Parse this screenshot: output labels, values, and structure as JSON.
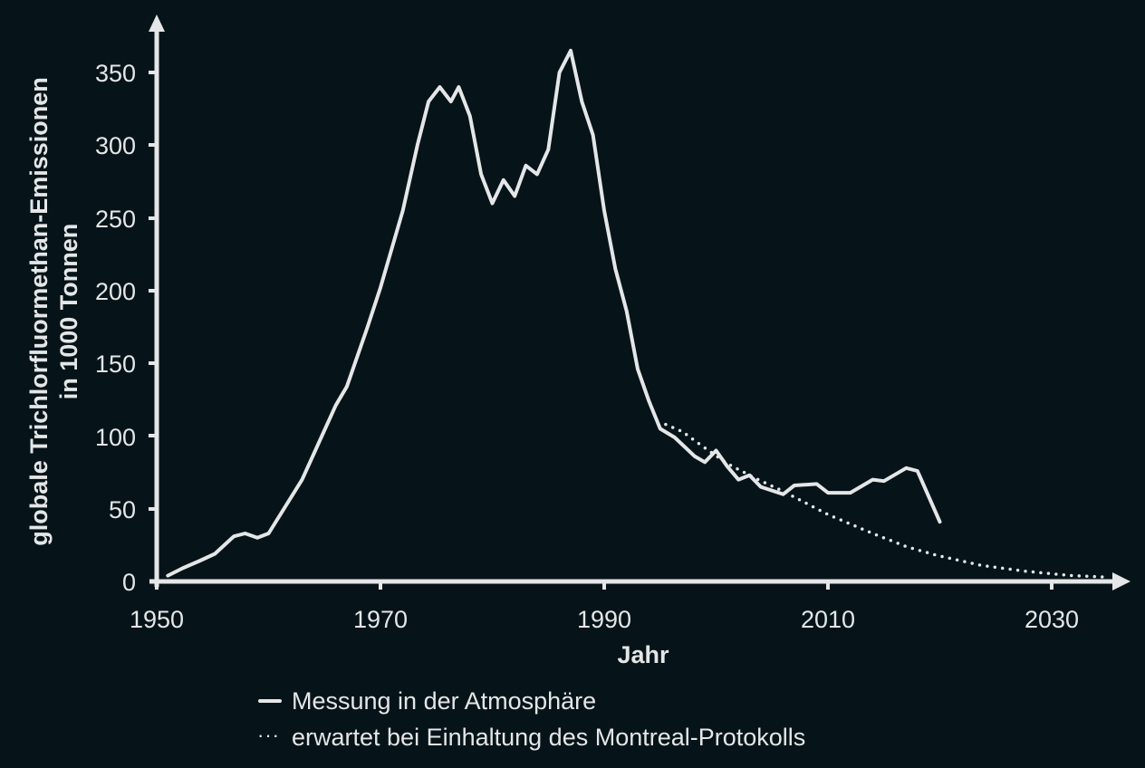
{
  "chart_data": {
    "type": "line",
    "title": "",
    "xlabel": "Jahr",
    "ylabel": "globale Trichlorfluormethan-Emissionen in 1000 Tonnen",
    "ylabel_lines": [
      "globale Trichlorfluormethan-Emissionen",
      "in 1000 Tonnen"
    ],
    "xlim": [
      1950,
      2036
    ],
    "ylim": [
      0,
      365
    ],
    "x_ticks": [
      1950,
      1970,
      1990,
      2010,
      2030
    ],
    "y_ticks": [
      0,
      50,
      100,
      150,
      200,
      250,
      300,
      350
    ],
    "grid": false,
    "legend_position": "bottom",
    "series": [
      {
        "name": "Messung in der Atmosphäre",
        "style": "solid",
        "x": [
          1951,
          1952.3,
          1953.8,
          1955.2,
          1956.9,
          1957.9,
          1959,
          1960,
          1963,
          1966,
          1967,
          1968.8,
          1970,
          1972,
          1973.3,
          1974.3,
          1975.3,
          1976.3,
          1977,
          1978,
          1979,
          1980,
          1981,
          1982,
          1983,
          1984,
          1985,
          1986,
          1987,
          1988,
          1989,
          1990,
          1991,
          1992,
          1993,
          1994,
          1995,
          1996.3,
          1998.1,
          1999,
          2000,
          2001,
          2002,
          2003,
          2004,
          2006,
          2007,
          2009,
          2010,
          2012,
          2014,
          2015,
          2017,
          2018,
          2020
        ],
        "values": [
          4,
          9,
          14,
          19,
          31,
          33,
          30,
          33,
          70,
          121,
          134,
          174,
          202,
          255,
          300,
          330,
          340,
          330,
          340,
          320,
          280,
          260,
          276,
          265,
          286,
          280,
          297,
          350,
          365,
          330,
          307,
          255,
          215,
          186,
          146,
          124,
          105,
          99,
          86,
          82,
          90,
          79,
          70,
          73,
          65,
          60,
          66,
          67,
          61,
          61,
          70,
          69,
          78,
          76,
          41
        ]
      },
      {
        "name": "erwartet bei Einhaltung des Montreal-Protokolls",
        "style": "dotted",
        "x": [
          1995.5,
          1997,
          1998.6,
          2001,
          2003.5,
          2006,
          2008,
          2010,
          2014,
          2017,
          2019.7,
          2023.7,
          2027.7,
          2031.8,
          2035
        ],
        "values": [
          108,
          103,
          94,
          81,
          71,
          62,
          54,
          46,
          33,
          24,
          18,
          11,
          7,
          4,
          3
        ]
      }
    ]
  },
  "axes": {
    "x_title": "Jahr",
    "y_title_line1": "globale Trichlorfluormethan-Emissionen",
    "y_title_line2": "in 1000 Tonnen",
    "x_tick_labels": [
      "1950",
      "1970",
      "1990",
      "2010",
      "2030"
    ],
    "y_tick_labels": [
      "0",
      "50",
      "100",
      "150",
      "200",
      "250",
      "300",
      "350"
    ]
  },
  "legend": {
    "items": [
      {
        "label": "Messung in der Atmosphäre",
        "style": "solid"
      },
      {
        "label": "erwartet bei Einhaltung des Montreal-Protokolls",
        "style": "dotted"
      }
    ]
  },
  "colors": {
    "background": "#061419",
    "foreground": "#e4e6e7"
  }
}
